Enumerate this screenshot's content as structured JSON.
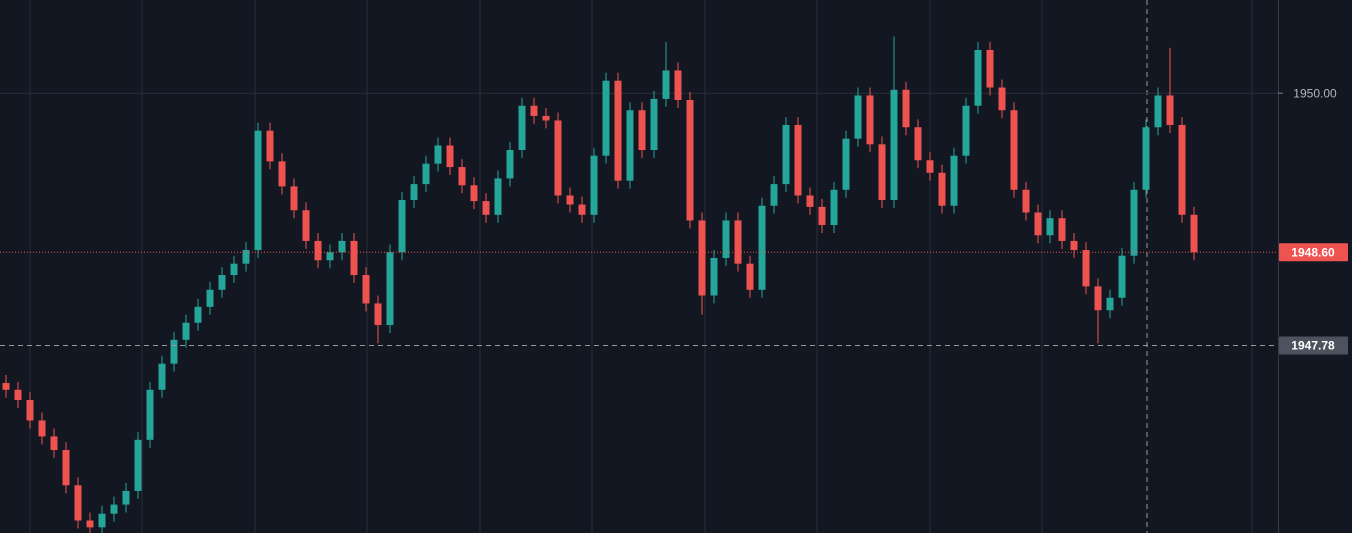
{
  "chart_data": {
    "type": "candlestick",
    "up_color": "#26a69a",
    "down_color": "#ef5350",
    "grid": true,
    "ylim": [
      1946.13,
      1950.82
    ],
    "yticks": [
      {
        "value": 1950,
        "label": "1950.00"
      }
    ],
    "last_price": {
      "value": 1948.6,
      "label": "1948.60"
    },
    "crosshair": {
      "value": 1947.78,
      "label": "1947.78"
    },
    "open": [
      1947.45,
      1947.39,
      1947.3,
      1947.12,
      1946.98,
      1946.86,
      1946.55,
      1946.24,
      1946.18,
      1946.3,
      1946.38,
      1946.5,
      1946.95,
      1947.39,
      1947.62,
      1947.83,
      1947.98,
      1948.12,
      1948.27,
      1948.4,
      1948.5,
      1948.62,
      1949.67,
      1949.4,
      1949.18,
      1948.97,
      1948.7,
      1948.53,
      1948.6,
      1948.7,
      1948.4,
      1948.15,
      1947.96,
      1948.6,
      1949.06,
      1949.2,
      1949.38,
      1949.54,
      1949.35,
      1949.19,
      1949.05,
      1948.93,
      1949.25,
      1949.5,
      1949.89,
      1949.8,
      1949.76,
      1949.1,
      1949.02,
      1948.93,
      1949.45,
      1950.11,
      1949.23,
      1949.85,
      1949.5,
      1949.95,
      1950.2,
      1949.94,
      1948.88,
      1948.22,
      1948.55,
      1948.88,
      1948.5,
      1948.27,
      1949.01,
      1949.2,
      1949.72,
      1949.1,
      1949.0,
      1948.84,
      1949.15,
      1949.6,
      1949.98,
      1949.55,
      1949.06,
      1950.03,
      1949.7,
      1949.41,
      1949.3,
      1949.01,
      1949.45,
      1949.89,
      1950.38,
      1950.05,
      1949.85,
      1949.15,
      1948.95,
      1948.75,
      1948.9,
      1948.7,
      1948.62,
      1948.3,
      1948.09,
      1948.2,
      1948.57,
      1949.15,
      1949.7,
      1949.98,
      1949.72,
      1948.93
    ],
    "high": [
      1947.52,
      1947.46,
      1947.37,
      1947.19,
      1947.05,
      1946.93,
      1946.62,
      1946.31,
      1946.37,
      1946.45,
      1946.57,
      1947.02,
      1947.46,
      1947.69,
      1947.9,
      1948.05,
      1948.19,
      1948.34,
      1948.47,
      1948.57,
      1948.69,
      1949.74,
      1949.74,
      1949.47,
      1949.25,
      1949.04,
      1948.77,
      1948.67,
      1948.77,
      1948.77,
      1948.47,
      1948.22,
      1948.67,
      1949.13,
      1949.27,
      1949.45,
      1949.61,
      1949.61,
      1949.42,
      1949.26,
      1949.12,
      1949.32,
      1949.57,
      1949.96,
      1949.96,
      1949.87,
      1949.83,
      1949.17,
      1949.09,
      1949.52,
      1950.18,
      1950.18,
      1949.92,
      1949.92,
      1950.02,
      1950.45,
      1950.27,
      1950.01,
      1948.95,
      1948.62,
      1948.95,
      1948.95,
      1948.57,
      1949.08,
      1949.27,
      1949.79,
      1949.79,
      1949.17,
      1949.07,
      1949.22,
      1949.67,
      1950.05,
      1950.05,
      1949.62,
      1950.5,
      1950.1,
      1949.77,
      1949.48,
      1949.37,
      1949.52,
      1949.96,
      1950.45,
      1950.45,
      1950.12,
      1949.92,
      1949.22,
      1949.02,
      1948.97,
      1948.97,
      1948.77,
      1948.69,
      1948.37,
      1948.27,
      1948.64,
      1949.22,
      1949.77,
      1950.05,
      1950.4,
      1949.79,
      1949.0
    ],
    "low": [
      1947.32,
      1947.23,
      1947.05,
      1946.91,
      1946.79,
      1946.48,
      1946.17,
      1946.11,
      1946.11,
      1946.23,
      1946.31,
      1946.43,
      1946.88,
      1947.32,
      1947.55,
      1947.76,
      1947.91,
      1948.05,
      1948.2,
      1948.33,
      1948.43,
      1948.55,
      1949.33,
      1949.11,
      1948.9,
      1948.63,
      1948.46,
      1948.46,
      1948.53,
      1948.33,
      1948.08,
      1947.8,
      1947.89,
      1948.53,
      1948.99,
      1949.13,
      1949.31,
      1949.28,
      1949.12,
      1948.98,
      1948.86,
      1948.86,
      1949.18,
      1949.43,
      1949.73,
      1949.69,
      1949.03,
      1948.95,
      1948.86,
      1948.86,
      1949.38,
      1949.16,
      1949.16,
      1949.43,
      1949.43,
      1949.88,
      1949.87,
      1948.81,
      1948.05,
      1948.15,
      1948.48,
      1948.43,
      1948.2,
      1948.2,
      1948.94,
      1949.13,
      1949.03,
      1948.93,
      1948.77,
      1948.77,
      1949.08,
      1949.53,
      1949.48,
      1948.99,
      1948.99,
      1949.63,
      1949.34,
      1949.23,
      1948.94,
      1948.94,
      1949.38,
      1949.82,
      1949.98,
      1949.78,
      1949.08,
      1948.88,
      1948.68,
      1948.68,
      1948.63,
      1948.55,
      1948.23,
      1947.8,
      1948.02,
      1948.13,
      1948.5,
      1949.08,
      1949.63,
      1949.65,
      1948.86,
      1948.53
    ],
    "close": [
      1947.39,
      1947.3,
      1947.12,
      1946.98,
      1946.86,
      1946.55,
      1946.24,
      1946.18,
      1946.3,
      1946.38,
      1946.5,
      1946.95,
      1947.39,
      1947.62,
      1947.83,
      1947.98,
      1948.12,
      1948.27,
      1948.4,
      1948.5,
      1948.62,
      1949.67,
      1949.4,
      1949.18,
      1948.97,
      1948.7,
      1948.53,
      1948.6,
      1948.7,
      1948.4,
      1948.15,
      1947.96,
      1948.6,
      1949.06,
      1949.2,
      1949.38,
      1949.54,
      1949.35,
      1949.19,
      1949.05,
      1948.93,
      1949.25,
      1949.5,
      1949.89,
      1949.8,
      1949.76,
      1949.1,
      1949.02,
      1948.93,
      1949.45,
      1950.11,
      1949.23,
      1949.85,
      1949.5,
      1949.95,
      1950.2,
      1949.94,
      1948.88,
      1948.22,
      1948.55,
      1948.88,
      1948.5,
      1948.27,
      1949.01,
      1949.2,
      1949.72,
      1949.1,
      1949.0,
      1948.84,
      1949.15,
      1949.6,
      1949.98,
      1949.55,
      1949.06,
      1950.03,
      1949.7,
      1949.41,
      1949.3,
      1949.01,
      1949.45,
      1949.89,
      1950.38,
      1950.05,
      1949.85,
      1949.15,
      1948.95,
      1948.75,
      1948.9,
      1948.7,
      1948.62,
      1948.3,
      1948.09,
      1948.2,
      1948.57,
      1949.15,
      1949.7,
      1949.98,
      1949.72,
      1948.93,
      1948.6
    ]
  }
}
